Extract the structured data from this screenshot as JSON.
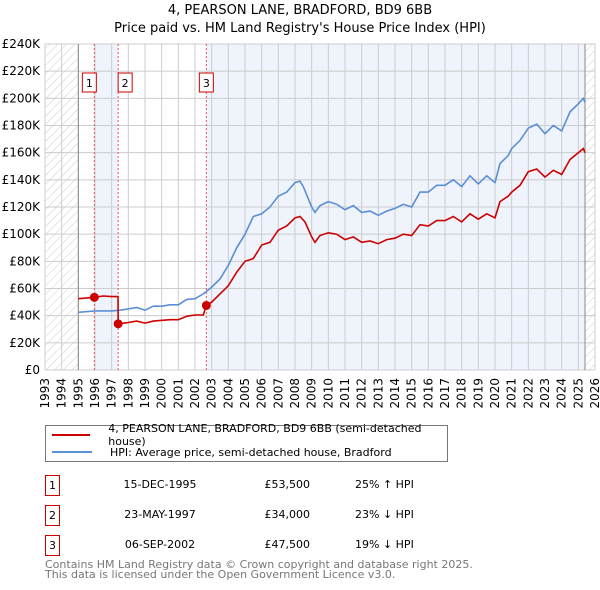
{
  "chart_data": {
    "type": "line",
    "title": "4, PEARSON LANE, BRADFORD, BD9 6BB",
    "subtitle": "Price paid vs. HM Land Registry's House Price Index (HPI)",
    "xlim": [
      1993,
      2026
    ],
    "ylim": [
      0,
      240000
    ],
    "y_ticks": [
      "£0",
      "£20K",
      "£40K",
      "£60K",
      "£80K",
      "£100K",
      "£120K",
      "£140K",
      "£160K",
      "£180K",
      "£200K",
      "£220K",
      "£240K"
    ],
    "x_ticks": [
      "1993",
      "1994",
      "1995",
      "1996",
      "1997",
      "1998",
      "1999",
      "2000",
      "2001",
      "2002",
      "2003",
      "2004",
      "2005",
      "2006",
      "2007",
      "2008",
      "2009",
      "2010",
      "2011",
      "2012",
      "2013",
      "2014",
      "2015",
      "2016",
      "2017",
      "2018",
      "2019",
      "2020",
      "2021",
      "2022",
      "2023",
      "2024",
      "2025",
      "2026"
    ],
    "grid": true,
    "colors": {
      "property": "#cc0000",
      "hpi": "#5b8fd4",
      "shade": "#eef3fc"
    },
    "data_range": [
      1995,
      2025.4
    ],
    "series": [
      {
        "name": "4, PEARSON LANE, BRADFORD, BD9 6BB (semi-detached house)",
        "color": "#cc0000",
        "points": [
          [
            1995,
            52500
          ],
          [
            1995.96,
            53500
          ],
          [
            1996.5,
            54500
          ],
          [
            1997,
            54000
          ],
          [
            1997.38,
            54000
          ],
          [
            1997.39,
            34000
          ],
          [
            1998,
            35000
          ],
          [
            1998.5,
            36000
          ],
          [
            1999,
            34500
          ],
          [
            1999.5,
            36000
          ],
          [
            2000.5,
            37000
          ],
          [
            2001,
            37000
          ],
          [
            2001.5,
            39500
          ],
          [
            2002,
            40500
          ],
          [
            2002.5,
            40500
          ],
          [
            2002.68,
            47500
          ],
          [
            2003,
            50000
          ],
          [
            2003.5,
            56000
          ],
          [
            2004,
            62000
          ],
          [
            2004.5,
            72000
          ],
          [
            2005,
            80000
          ],
          [
            2005.5,
            82000
          ],
          [
            2006,
            92000
          ],
          [
            2006.5,
            94000
          ],
          [
            2007,
            103000
          ],
          [
            2007.5,
            106000
          ],
          [
            2008,
            112000
          ],
          [
            2008.3,
            113000
          ],
          [
            2008.6,
            109000
          ],
          [
            2009,
            98000
          ],
          [
            2009.2,
            94000
          ],
          [
            2009.5,
            99000
          ],
          [
            2010,
            101000
          ],
          [
            2010.5,
            100000
          ],
          [
            2011,
            96000
          ],
          [
            2011.5,
            98000
          ],
          [
            2012,
            94000
          ],
          [
            2012.5,
            95000
          ],
          [
            2013,
            93000
          ],
          [
            2013.5,
            96000
          ],
          [
            2014,
            97000
          ],
          [
            2014.5,
            100000
          ],
          [
            2015,
            99000
          ],
          [
            2015.5,
            107000
          ],
          [
            2016,
            106000
          ],
          [
            2016.5,
            110000
          ],
          [
            2017,
            110000
          ],
          [
            2017.5,
            113000
          ],
          [
            2018,
            109000
          ],
          [
            2018.5,
            115000
          ],
          [
            2019,
            111000
          ],
          [
            2019.5,
            115000
          ],
          [
            2020,
            112000
          ],
          [
            2020.3,
            124000
          ],
          [
            2020.8,
            128000
          ],
          [
            2021,
            131000
          ],
          [
            2021.5,
            136000
          ],
          [
            2022,
            146000
          ],
          [
            2022.5,
            148000
          ],
          [
            2023,
            142000
          ],
          [
            2023.5,
            147000
          ],
          [
            2024,
            144000
          ],
          [
            2024.5,
            155000
          ],
          [
            2025,
            160000
          ],
          [
            2025.3,
            163000
          ],
          [
            2025.4,
            160000
          ]
        ]
      },
      {
        "name": "HPI: Average price, semi-detached house, Bradford",
        "color": "#5b8fd4",
        "points": [
          [
            1995,
            42500
          ],
          [
            1996,
            43500
          ],
          [
            1997,
            43500
          ],
          [
            1997.5,
            44000
          ],
          [
            1998,
            45000
          ],
          [
            1998.5,
            46000
          ],
          [
            1999,
            44000
          ],
          [
            1999.5,
            47000
          ],
          [
            2000,
            47000
          ],
          [
            2000.5,
            48000
          ],
          [
            2001,
            48000
          ],
          [
            2001.5,
            52000
          ],
          [
            2002,
            52500
          ],
          [
            2002.5,
            56000
          ],
          [
            2003,
            61000
          ],
          [
            2003.5,
            67000
          ],
          [
            2004,
            77000
          ],
          [
            2004.5,
            90000
          ],
          [
            2005,
            100000
          ],
          [
            2005.5,
            113000
          ],
          [
            2006,
            115000
          ],
          [
            2006.5,
            120000
          ],
          [
            2007,
            128000
          ],
          [
            2007.5,
            131000
          ],
          [
            2008,
            138000
          ],
          [
            2008.3,
            139000
          ],
          [
            2008.5,
            135000
          ],
          [
            2009,
            120000
          ],
          [
            2009.2,
            116000
          ],
          [
            2009.5,
            121000
          ],
          [
            2010,
            124000
          ],
          [
            2010.5,
            122000
          ],
          [
            2011,
            118000
          ],
          [
            2011.5,
            121000
          ],
          [
            2012,
            116000
          ],
          [
            2012.5,
            117000
          ],
          [
            2013,
            114000
          ],
          [
            2013.5,
            117000
          ],
          [
            2014,
            119000
          ],
          [
            2014.5,
            122000
          ],
          [
            2015,
            120000
          ],
          [
            2015.5,
            131000
          ],
          [
            2016,
            131000
          ],
          [
            2016.5,
            136000
          ],
          [
            2017,
            136000
          ],
          [
            2017.5,
            140000
          ],
          [
            2018,
            135000
          ],
          [
            2018.5,
            143000
          ],
          [
            2019,
            137000
          ],
          [
            2019.5,
            143000
          ],
          [
            2020,
            138000
          ],
          [
            2020.3,
            152000
          ],
          [
            2020.8,
            158000
          ],
          [
            2021,
            163000
          ],
          [
            2021.5,
            169000
          ],
          [
            2022,
            178000
          ],
          [
            2022.5,
            181000
          ],
          [
            2023,
            174000
          ],
          [
            2023.5,
            180000
          ],
          [
            2024,
            176000
          ],
          [
            2024.5,
            190000
          ],
          [
            2025,
            196000
          ],
          [
            2025.3,
            200000
          ],
          [
            2025.4,
            197000
          ]
        ]
      }
    ],
    "sales": [
      {
        "label": "1",
        "x": 1995.96,
        "y": 53500
      },
      {
        "label": "2",
        "x": 1997.39,
        "y": 34000
      },
      {
        "label": "3",
        "x": 2002.68,
        "y": 47500
      }
    ]
  },
  "legend": {
    "property": "4, PEARSON LANE, BRADFORD, BD9 6BB (semi-detached house)",
    "hpi": "HPI: Average price, semi-detached house, Bradford"
  },
  "transactions": [
    {
      "num": "1",
      "date": "15-DEC-1995",
      "price": "£53,500",
      "hpi": "25% ↑ HPI"
    },
    {
      "num": "2",
      "date": "23-MAY-1997",
      "price": "£34,000",
      "hpi": "23% ↓ HPI"
    },
    {
      "num": "3",
      "date": "06-SEP-2002",
      "price": "£47,500",
      "hpi": "19% ↓ HPI"
    }
  ],
  "footer": {
    "line1": "Contains HM Land Registry data © Crown copyright and database right 2025.",
    "line2": "This data is licensed under the Open Government Licence v3.0."
  }
}
